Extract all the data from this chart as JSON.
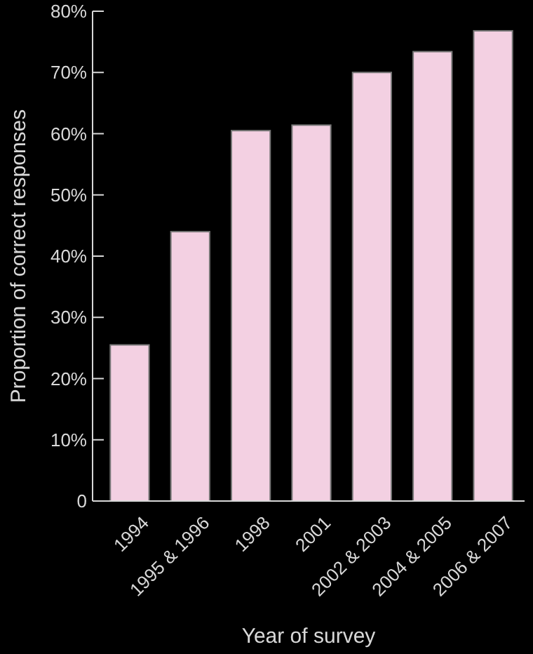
{
  "chart_data": {
    "type": "bar",
    "xlabel": "Year of survey",
    "ylabel": "Proportion of correct responses",
    "categories": [
      "1994",
      "1995 & 1996",
      "1998",
      "2001",
      "2002 & 2003",
      "2004 & 2005",
      "2006 & 2007"
    ],
    "values": [
      25.5,
      44,
      60.5,
      61.4,
      70,
      73.4,
      76.8
    ],
    "color": "#f3d0e2",
    "ylim": [
      0,
      80
    ],
    "yticks": [
      {
        "value": 0,
        "label": "0"
      },
      {
        "value": 10,
        "label": "10%"
      },
      {
        "value": 20,
        "label": "20%"
      },
      {
        "value": 30,
        "label": "30%"
      },
      {
        "value": 40,
        "label": "40%"
      },
      {
        "value": 50,
        "label": "50%"
      },
      {
        "value": 60,
        "label": "60%"
      },
      {
        "value": 70,
        "label": "70%"
      },
      {
        "value": 80,
        "label": "80%"
      }
    ]
  }
}
